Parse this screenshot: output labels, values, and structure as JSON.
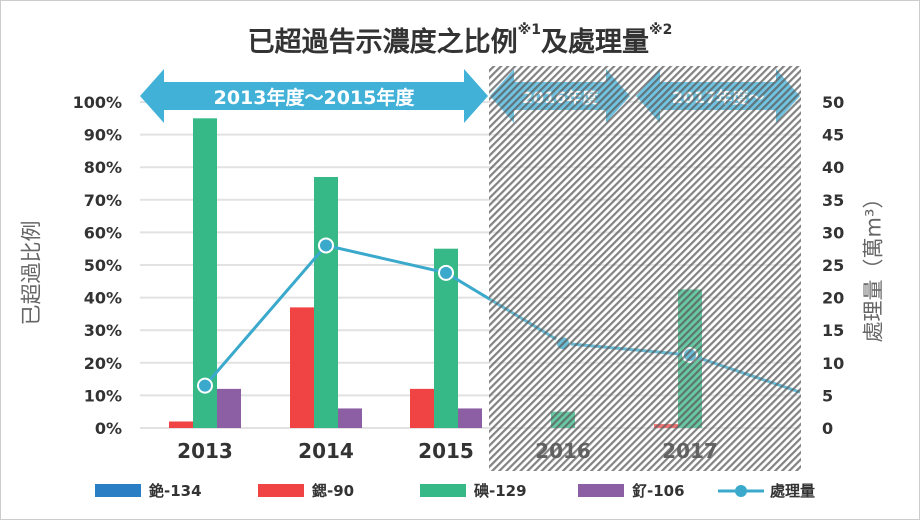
{
  "chart_data": {
    "type": "bar",
    "title": "已超過告示濃度之比例",
    "title_note1": "※1",
    "title_mid": "及處理量",
    "title_note2": "※2",
    "ylabel": "已超過比例",
    "y2label": "處理量（萬m³）",
    "ylim": [
      0,
      100
    ],
    "y2lim": [
      0,
      50
    ],
    "yticks": [
      "0%",
      "10%",
      "20%",
      "30%",
      "40%",
      "50%",
      "60%",
      "70%",
      "80%",
      "90%",
      "100%"
    ],
    "y2ticks": [
      "0",
      "5",
      "10",
      "15",
      "20",
      "25",
      "30",
      "35",
      "40",
      "45",
      "50"
    ],
    "categories": [
      "2013",
      "2014",
      "2015",
      "2016",
      "2017"
    ],
    "series": [
      {
        "name": "銫-134",
        "color": "#2a7fc4",
        "values": [
          0,
          0,
          0,
          0,
          0
        ]
      },
      {
        "name": "鍶-90",
        "color": "#f04444",
        "values": [
          2,
          37,
          12,
          0,
          1.2
        ]
      },
      {
        "name": "碘-129",
        "color": "#36b887",
        "values": [
          95,
          77,
          55,
          5,
          42.5
        ]
      },
      {
        "name": "釕-106",
        "color": "#8c5fa5",
        "values": [
          12,
          6,
          6,
          0,
          0
        ]
      }
    ],
    "line_series": {
      "name": "處理量",
      "color": "#3aa9cc",
      "axis": "right",
      "values": [
        6.5,
        28,
        23.8,
        13,
        11.2
      ],
      "trailing_value": 5.5
    },
    "period_labels": [
      "2013年度～2015年度",
      "2016年度",
      "2017年度～"
    ],
    "hatched_categories": [
      "2016",
      "2017"
    ],
    "grid": true,
    "legend_position": "bottom"
  }
}
